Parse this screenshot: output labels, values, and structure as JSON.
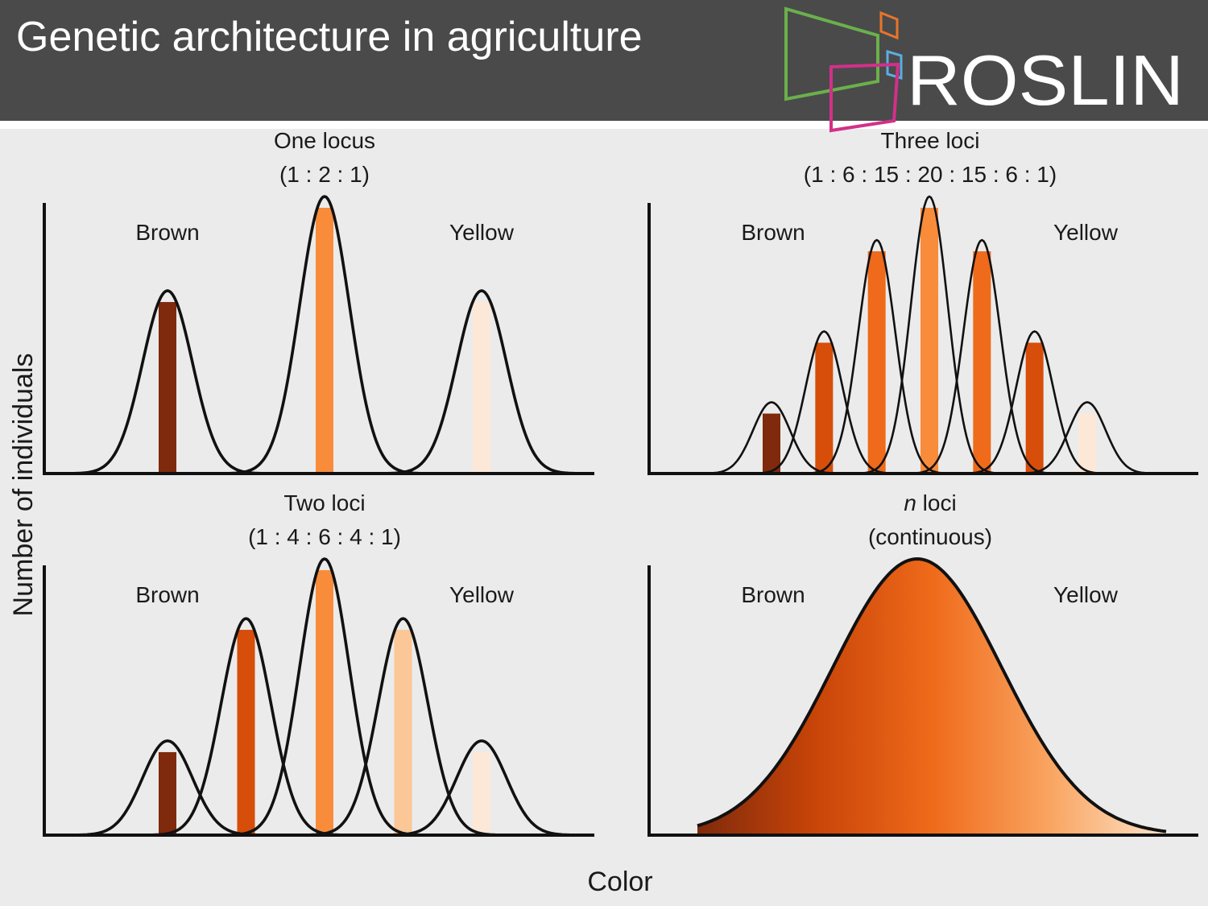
{
  "slide": {
    "title": "Genetic architecture in agriculture",
    "logo_text": "ROSLIN",
    "logo_colors": {
      "green": "#6ab04c",
      "orange": "#e8752a",
      "blue": "#5aaee0",
      "magenta": "#d2308a"
    },
    "header_color": "#4a4a4a",
    "background_color": "#ebebeb"
  },
  "chart_data": {
    "type": "area",
    "y_axis_label": "Number of individuals",
    "x_axis_label": "Color",
    "panels": [
      {
        "title": "One locus",
        "ratio": "(1 : 2 : 1)",
        "left_label": "Brown",
        "right_label": "Yellow",
        "continuous": false,
        "values": [
          1,
          2,
          1
        ],
        "colors": [
          "#7f2a0c",
          "#f98c3a",
          "#fde8d8"
        ]
      },
      {
        "title": "Three loci",
        "ratio": "(1 : 6 : 15 : 20 : 15 : 6 : 1)",
        "left_label": "Brown",
        "right_label": "Yellow",
        "continuous": false,
        "values": [
          1,
          6,
          15,
          20,
          15,
          6,
          1
        ],
        "colors": [
          "#7f2a0c",
          "#d64e0a",
          "#ef6a1a",
          "#f98c3a",
          "#ef6a1a",
          "#d64e0a",
          "#fde8d8"
        ]
      },
      {
        "title": "Two loci",
        "ratio": "(1 : 4 : 6 : 4 : 1)",
        "left_label": "Brown",
        "right_label": "Yellow",
        "continuous": false,
        "values": [
          1,
          4,
          6,
          4,
          1
        ],
        "colors": [
          "#7f2a0c",
          "#d64e0a",
          "#f98c3a",
          "#fbc796",
          "#fde8d8"
        ]
      },
      {
        "title_italic": "n",
        "title": " loci",
        "ratio": "(continuous)",
        "left_label": "Brown",
        "right_label": "Yellow",
        "continuous": true,
        "values": [],
        "colors": [
          "#7f2a0c",
          "#c84408",
          "#ef6a1a",
          "#f9a460",
          "#fde2c8"
        ]
      }
    ]
  }
}
